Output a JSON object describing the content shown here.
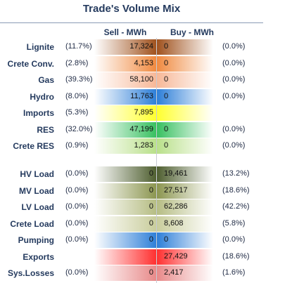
{
  "chart_data": {
    "type": "table",
    "title": "Trade's Volume Mix",
    "columns": [
      "Sell - MWh",
      "Buy - MWh"
    ],
    "groups": [
      {
        "rows": [
          {
            "label": "Lignite",
            "sell_pct": "(11.7%)",
            "sell": "17,324",
            "buy": "0",
            "buy_pct": "(0.0%)",
            "sell_color": "#a0521e",
            "buy_color": "#a0521e"
          },
          {
            "label": "Crete Conv.",
            "sell_pct": "(2.8%)",
            "sell": "4,153",
            "buy": "0",
            "buy_pct": "(0.0%)",
            "sell_color": "#f08a40",
            "buy_color": "#f08a40"
          },
          {
            "label": "Gas",
            "sell_pct": "(39.3%)",
            "sell": "58,100",
            "buy": "0",
            "buy_pct": "(0.0%)",
            "sell_color": "#f7b898",
            "buy_color": "#f7b898"
          },
          {
            "label": "Hydro",
            "sell_pct": "(8.0%)",
            "sell": "11,763",
            "buy": "0",
            "buy_pct": "(0.0%)",
            "sell_color": "#2e7fd8",
            "buy_color": "#2e7fd8"
          },
          {
            "label": "Imports",
            "sell_pct": "(5.3%)",
            "sell": "7,895",
            "buy": "",
            "buy_pct": "",
            "sell_color": "#ffff30",
            "buy_color": "#ffff30"
          },
          {
            "label": "RES",
            "sell_pct": "(32.0%)",
            "sell": "47,199",
            "buy": "0",
            "buy_pct": "(0.0%)",
            "sell_color": "#38c060",
            "buy_color": "#38c060"
          },
          {
            "label": "Crete RES",
            "sell_pct": "(0.9%)",
            "sell": "1,283",
            "buy": "0",
            "buy_pct": "(0.0%)",
            "sell_color": "#b9e08a",
            "buy_color": "#b9e08a"
          }
        ]
      },
      {
        "rows": [
          {
            "label": "HV Load",
            "sell_pct": "(0.0%)",
            "sell": "0",
            "buy": "19,461",
            "buy_pct": "(13.2%)",
            "sell_color": "#4f5f30",
            "buy_color": "#4f5f30"
          },
          {
            "label": "MV Load",
            "sell_pct": "(0.0%)",
            "sell": "0",
            "buy": "27,517",
            "buy_pct": "(18.6%)",
            "sell_color": "#8c9650",
            "buy_color": "#8c9650"
          },
          {
            "label": "LV Load",
            "sell_pct": "(0.0%)",
            "sell": "0",
            "buy": "62,286",
            "buy_pct": "(42.2%)",
            "sell_color": "#b6bd84",
            "buy_color": "#b6bd84"
          },
          {
            "label": "Crete Load",
            "sell_pct": "(0.0%)",
            "sell": "0",
            "buy": "8,608",
            "buy_pct": "(5.8%)",
            "sell_color": "#c9cd9c",
            "buy_color": "#c9cd9c"
          },
          {
            "label": "Pumping",
            "sell_pct": "(0.0%)",
            "sell": "0",
            "buy": "0",
            "buy_pct": "(0.0%)",
            "sell_color": "#2e7fd8",
            "buy_color": "#2e7fd8"
          },
          {
            "label": "Exports",
            "sell_pct": "",
            "sell": "",
            "buy": "27,429",
            "buy_pct": "(18.6%)",
            "sell_color": "#ff3030",
            "buy_color": "#ff3030"
          },
          {
            "label": "Sys.Losses",
            "sell_pct": "(0.0%)",
            "sell": "0",
            "buy": "2,417",
            "buy_pct": "(1.6%)",
            "sell_color": "#e88a8a",
            "buy_color": "#e88a8a"
          }
        ]
      }
    ]
  }
}
